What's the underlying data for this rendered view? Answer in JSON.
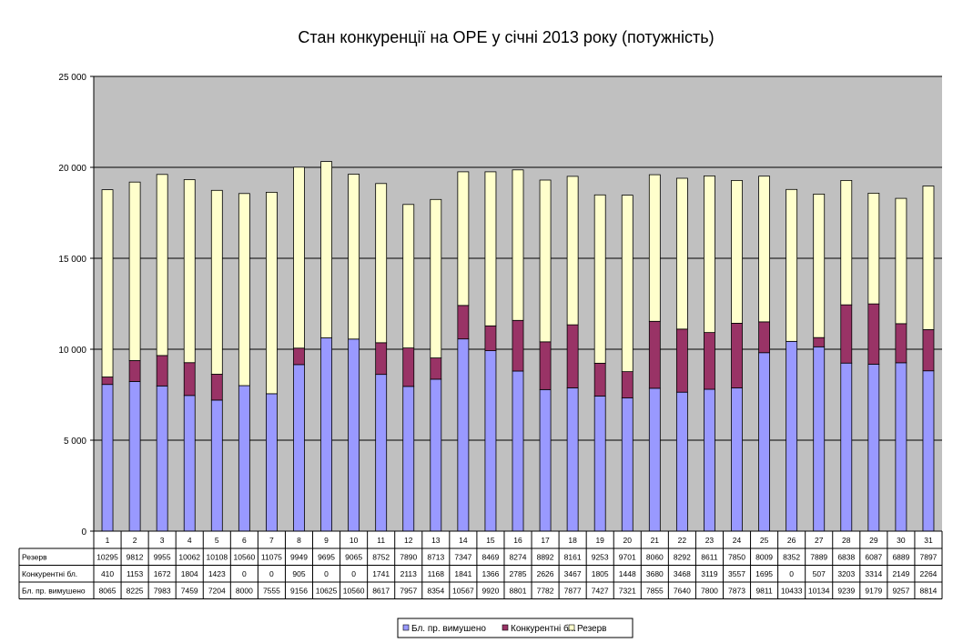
{
  "chart_data": {
    "type": "bar",
    "stacked": true,
    "title": "Стан конкуренції на ОРЕ  у січні 2013 року (потужність)",
    "xlabel": "",
    "ylabel": "",
    "ylim": [
      0,
      25000
    ],
    "yticks": [
      0,
      5000,
      10000,
      15000,
      20000,
      25000
    ],
    "ytick_labels": [
      "0",
      "5 000",
      "10 000",
      "15 000",
      "20 000",
      "25 000"
    ],
    "grid": true,
    "legend_position": "bottom",
    "data_table": true,
    "categories": [
      "1",
      "2",
      "3",
      "4",
      "5",
      "6",
      "7",
      "8",
      "9",
      "10",
      "11",
      "12",
      "13",
      "14",
      "15",
      "16",
      "17",
      "18",
      "19",
      "20",
      "21",
      "22",
      "23",
      "24",
      "25",
      "26",
      "27",
      "28",
      "29",
      "30",
      "31"
    ],
    "series": [
      {
        "name": "Бл. пр. вимушено",
        "color": "#9999ff",
        "values": [
          8065,
          8225,
          7983,
          7459,
          7204,
          8000,
          7555,
          9156,
          10625,
          10560,
          8617,
          7957,
          8354,
          10567,
          9920,
          8801,
          7782,
          7877,
          7427,
          7321,
          7855,
          7640,
          7800,
          7873,
          9811,
          10433,
          10134,
          9239,
          9179,
          9257,
          8814
        ]
      },
      {
        "name": "Конкурентні бл.",
        "color": "#993366",
        "values": [
          410,
          1153,
          1672,
          1804,
          1423,
          0,
          0,
          905,
          0,
          0,
          1741,
          2113,
          1168,
          1841,
          1366,
          2785,
          2626,
          3467,
          1805,
          1448,
          3680,
          3468,
          3119,
          3557,
          1695,
          0,
          507,
          3203,
          3314,
          2149,
          2264
        ]
      },
      {
        "name": "Резерв",
        "color": "#ffffcc",
        "values": [
          10295,
          9812,
          9955,
          10062,
          10108,
          10560,
          11075,
          9949,
          9695,
          9065,
          8752,
          7890,
          8713,
          7347,
          8469,
          8274,
          8892,
          8161,
          9253,
          9701,
          8060,
          8292,
          8611,
          7850,
          8009,
          8352,
          7889,
          6838,
          6087,
          6889,
          7897
        ]
      }
    ],
    "table_rows": [
      "Резерв",
      "Конкурентні бл.",
      "Бл. пр. вимушено"
    ],
    "colors": {
      "plot_bg": "#c0c0c0",
      "bar_border": "#000000"
    }
  }
}
